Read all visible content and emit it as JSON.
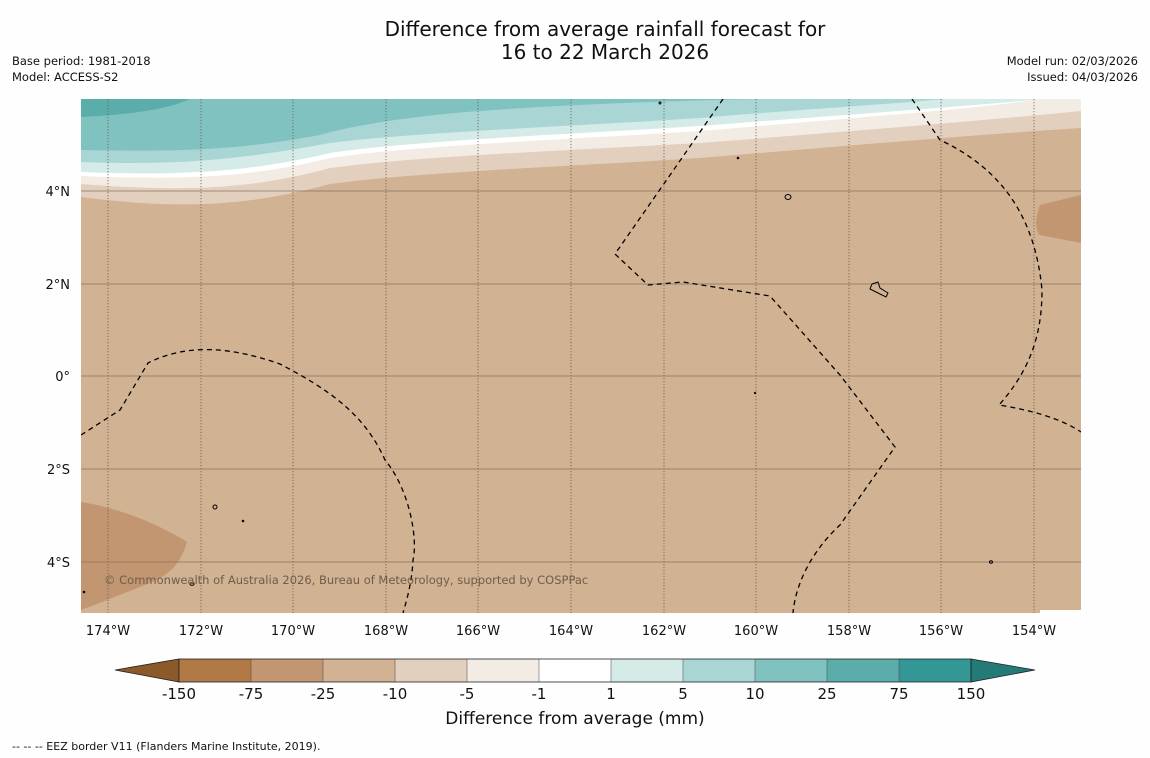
{
  "title": {
    "line1": "Difference from average rainfall forecast for",
    "line2": "16 to 22 March 2026"
  },
  "meta_left": {
    "base_period": "Base period: 1981-2018",
    "model": "Model: ACCESS-S2"
  },
  "meta_right": {
    "model_run": "Model run: 02/03/2026",
    "issued": "Issued: 04/03/2026"
  },
  "map": {
    "lon_ticks": [
      "174°W",
      "172°W",
      "170°W",
      "168°W",
      "166°W",
      "164°W",
      "162°W",
      "160°W",
      "158°W",
      "156°W",
      "154°W"
    ],
    "lat_ticks": [
      "4°N",
      "2°N",
      "0°",
      "2°S",
      "4°S"
    ],
    "copyright": "© Commonwealth of Australia 2026, Bureau of Meteorology, supported by COSPPac",
    "colors": {
      "dry_150": "#b07945",
      "dry_75": "#c29670",
      "dry_25": "#d1b292",
      "dry_10": "#e3cfbd",
      "dry_5": "#f3ece4",
      "neutral": "#ffffff",
      "wet_5": "#d4ebe8",
      "wet_10": "#a9d6d5",
      "wet_25": "#80c2c0",
      "wet_75": "#5badab",
      "wet_150": "#339895"
    }
  },
  "colorbar": {
    "labels": [
      "-150",
      "-75",
      "-25",
      "-10",
      "-5",
      "-1",
      "1",
      "5",
      "10",
      "25",
      "75",
      "150"
    ],
    "title": "Difference from average (mm)"
  },
  "footnote": "--  --  -- EEZ border V11 (Flanders Marine Institute, 2019)."
}
